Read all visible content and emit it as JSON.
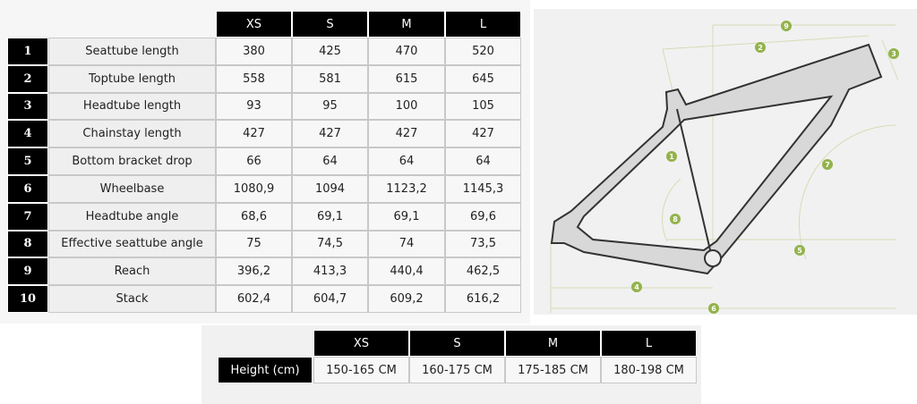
{
  "geometry_table": {
    "columns": [
      "XS",
      "S",
      "M",
      "L"
    ],
    "rows": [
      {
        "number": "1",
        "label": "Seattube length",
        "values": [
          "380",
          "425",
          "470",
          "520"
        ]
      },
      {
        "number": "2",
        "label": "Toptube length",
        "values": [
          "558",
          "581",
          "615",
          "645"
        ]
      },
      {
        "number": "3",
        "label": "Headtube length",
        "values": [
          "93",
          "95",
          "100",
          "105"
        ]
      },
      {
        "number": "4",
        "label": "Chainstay length",
        "values": [
          "427",
          "427",
          "427",
          "427"
        ]
      },
      {
        "number": "5",
        "label": "Bottom bracket drop",
        "values": [
          "66",
          "64",
          "64",
          "64"
        ]
      },
      {
        "number": "6",
        "label": "Wheelbase",
        "values": [
          "1080,9",
          "1094",
          "1123,2",
          "1145,3"
        ]
      },
      {
        "number": "7",
        "label": "Headtube angle",
        "values": [
          "68,6",
          "69,1",
          "69,1",
          "69,6"
        ]
      },
      {
        "number": "8",
        "label": "Effective seattube angle",
        "values": [
          "75",
          "74,5",
          "74",
          "73,5"
        ]
      },
      {
        "number": "9",
        "label": "Reach",
        "values": [
          "396,2",
          "413,3",
          "440,4",
          "462,5"
        ]
      },
      {
        "number": "10",
        "label": "Stack",
        "values": [
          "602,4",
          "604,7",
          "609,2",
          "616,2"
        ]
      }
    ]
  },
  "diagram": {
    "markers": [
      "9",
      "2",
      "3",
      "1",
      "7",
      "8",
      "5",
      "4",
      "6"
    ]
  },
  "size_table": {
    "columns": [
      "XS",
      "S",
      "M",
      "L"
    ],
    "row_label": "Height (cm)",
    "values": [
      "150-165 CM",
      "160-175 CM",
      "175-185 CM",
      "180-198 CM"
    ]
  }
}
